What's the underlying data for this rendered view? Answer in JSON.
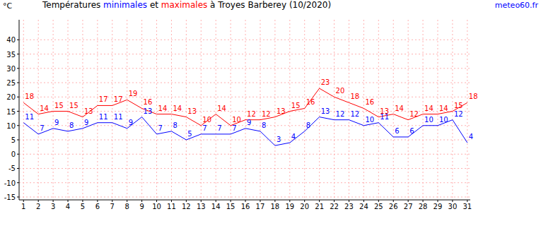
{
  "chart_data": {
    "type": "line",
    "title": "Températures minimales et maximales à Troyes Barberey (10/2020)",
    "source": "meteo60.fr",
    "y_label": "°C",
    "x": [
      1,
      2,
      3,
      4,
      5,
      6,
      7,
      8,
      9,
      10,
      11,
      12,
      13,
      14,
      15,
      16,
      17,
      18,
      19,
      20,
      21,
      22,
      23,
      24,
      25,
      26,
      27,
      28,
      29,
      30,
      31
    ],
    "series": [
      {
        "name": "minimales",
        "color": "#0000ff",
        "values": [
          11,
          7,
          9,
          8,
          9,
          11,
          11,
          9,
          13,
          7,
          8,
          5,
          7,
          7,
          7,
          9,
          8,
          3,
          4,
          8,
          13,
          12,
          12,
          10,
          11,
          6,
          6,
          10,
          10,
          12,
          4
        ]
      },
      {
        "name": "maximales",
        "color": "#ff0000",
        "values": [
          18,
          14,
          15,
          15,
          13,
          17,
          17,
          19,
          16,
          14,
          14,
          13,
          10,
          14,
          10,
          12,
          12,
          13,
          15,
          16,
          23,
          20,
          18,
          16,
          13,
          14,
          12,
          14,
          14,
          15,
          18
        ]
      }
    ],
    "xlim": [
      0.7,
      31.2
    ],
    "xticks": [
      1,
      2,
      3,
      4,
      5,
      6,
      7,
      8,
      9,
      10,
      11,
      12,
      13,
      14,
      15,
      16,
      17,
      18,
      19,
      20,
      21,
      22,
      23,
      24,
      25,
      26,
      27,
      28,
      29,
      30,
      31
    ],
    "ylim": [
      -16,
      47
    ],
    "yticks": [
      -15,
      -10,
      -5,
      0,
      5,
      10,
      15,
      20,
      25,
      30,
      35,
      40
    ],
    "grid": true,
    "data_labels": true
  }
}
